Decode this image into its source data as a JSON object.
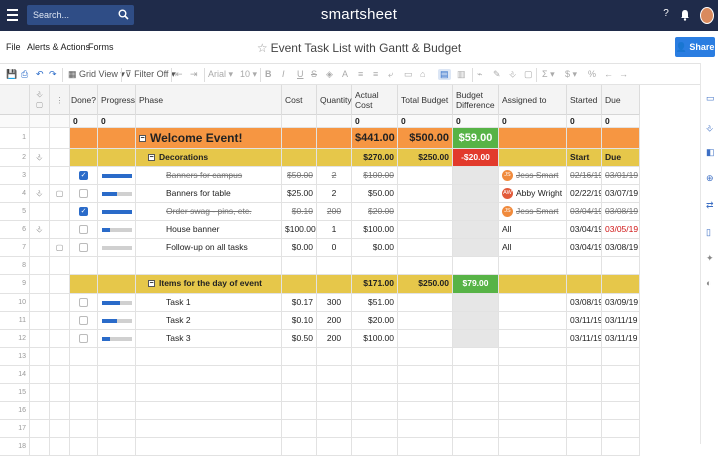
{
  "topbar": {
    "search_placeholder": "Search...",
    "logo": "smartsheet",
    "help_icon": "?",
    "bell_icon": "bell-icon"
  },
  "menubar": {
    "file": "File",
    "alerts": "Alerts & Actions",
    "forms": "Forms",
    "title": "Event Task List with Gantt & Budget",
    "share": "Share"
  },
  "toolbar": {
    "view": "Grid View",
    "filter": "Filter Off",
    "font": "Arial",
    "size": "10",
    "bold": "B",
    "italic": "I",
    "underline": "U",
    "strike": "S",
    "sum": "Σ",
    "currency": "$",
    "percent": "%"
  },
  "columns": {
    "done": "Done?",
    "progress": "Progress",
    "phase": "Phase",
    "cost": "Cost",
    "quantity": "Quantity",
    "actual_cost": "Actual Cost",
    "total_budget": "Total Budget",
    "budget_diff_1": "Budget",
    "budget_diff_2": "Difference",
    "assigned": "Assigned to",
    "started": "Started",
    "due": "Due"
  },
  "counts": {
    "done": "0",
    "progress": "0",
    "actual": "0",
    "total": "0",
    "diff": "0",
    "assigned": "0",
    "started": "0",
    "due": "0"
  },
  "rows": [
    {
      "n": "1",
      "phase": "Welcome Event!",
      "actual": "$441.00",
      "total": "$500.00",
      "diff": "$59.00"
    },
    {
      "n": "2",
      "phase": "Decorations",
      "actual": "$270.00",
      "total": "$250.00",
      "diff": "-$20.00",
      "started": "Start",
      "due": "Due"
    },
    {
      "n": "3",
      "phase": "Banners for campus",
      "cost": "$50.00",
      "qty": "2",
      "actual": "$100.00",
      "assigned": "Jess Smart",
      "assigned_initials": "JS",
      "started": "02/16/19",
      "due": "03/01/19"
    },
    {
      "n": "4",
      "phase": "Banners for table",
      "cost": "$25.00",
      "qty": "2",
      "actual": "$50.00",
      "assigned": "Abby Wright",
      "assigned_initials": "AW",
      "started": "02/22/19",
      "due": "03/07/19"
    },
    {
      "n": "5",
      "phase": "Order swag - pins, etc.",
      "cost": "$0.10",
      "qty": "200",
      "actual": "$20.00",
      "assigned": "Jess Smart",
      "assigned_initials": "JS",
      "started": "03/04/19",
      "due": "03/08/19"
    },
    {
      "n": "6",
      "phase": "House banner",
      "cost": "$100.00",
      "qty": "1",
      "actual": "$100.00",
      "assigned": "All",
      "started": "03/04/19",
      "due": "03/05/19"
    },
    {
      "n": "7",
      "phase": "Follow-up on all tasks",
      "cost": "$0.00",
      "qty": "0",
      "actual": "$0.00",
      "assigned": "All",
      "started": "03/04/19",
      "due": "03/08/19"
    },
    {
      "n": "8"
    },
    {
      "n": "9",
      "phase": "Items for the day of event",
      "actual": "$171.00",
      "total": "$250.00",
      "diff": "$79.00"
    },
    {
      "n": "10",
      "phase": "Task 1",
      "cost": "$0.17",
      "qty": "300",
      "actual": "$51.00",
      "started": "03/08/19",
      "due": "03/09/19"
    },
    {
      "n": "11",
      "phase": "Task 2",
      "cost": "$0.10",
      "qty": "200",
      "actual": "$20.00",
      "started": "03/11/19",
      "due": "03/11/19"
    },
    {
      "n": "12",
      "phase": "Task 3",
      "cost": "$0.50",
      "qty": "200",
      "actual": "$100.00",
      "started": "03/11/19",
      "due": "03/11/19"
    },
    {
      "n": "13"
    },
    {
      "n": "14"
    },
    {
      "n": "15"
    },
    {
      "n": "16"
    },
    {
      "n": "17"
    },
    {
      "n": "18"
    }
  ],
  "progress": {
    "r3": 1.0,
    "r4": 0.5,
    "r5": 1.0,
    "r6": 0.25,
    "r7": 0.0,
    "r10": 0.6,
    "r11": 0.5,
    "r12": 0.25
  },
  "colors": {
    "orange": "#f69642",
    "yellow": "#e6c74a",
    "green": "#57b346",
    "red": "#e23a2c",
    "accent": "#2a7de1"
  }
}
